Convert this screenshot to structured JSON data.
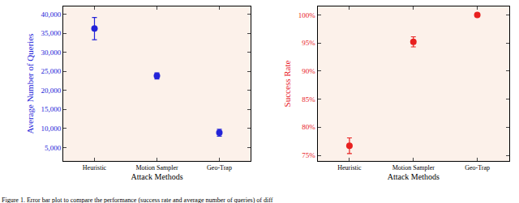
{
  "chart_data": [
    {
      "type": "scatter",
      "x_label": "Attack Methods",
      "y_label": "Average Number of Queries",
      "categories": [
        "Heuristic",
        "Motion Sampler",
        "Geo-Trap"
      ],
      "values": [
        36200,
        23800,
        8900
      ],
      "errors": [
        2900,
        800,
        900
      ],
      "color": "#2323d8",
      "marker": "circle",
      "ylim": [
        1500,
        42000
      ],
      "yticks": [
        {
          "value": 5000,
          "label": "5,000"
        },
        {
          "value": 10000,
          "label": "10,000"
        },
        {
          "value": 15000,
          "label": "15,000"
        },
        {
          "value": 20000,
          "label": "20,000"
        },
        {
          "value": 25000,
          "label": "25,000"
        },
        {
          "value": 30000,
          "label": "30,000"
        },
        {
          "value": 35000,
          "label": "35,000"
        },
        {
          "value": 40000,
          "label": "40,000"
        }
      ],
      "grid": false
    },
    {
      "type": "scatter",
      "x_label": "Attack Methods",
      "y_label": "Success Rate",
      "categories": [
        "Heuristic",
        "Motion Sampler",
        "Geo-Trap"
      ],
      "values": [
        76.7,
        95.2,
        100
      ],
      "errors": [
        1.4,
        0.9,
        0
      ],
      "color": "#e8201f",
      "marker": "circle",
      "ylim": [
        74,
        101.5
      ],
      "yticks": [
        {
          "value": 75,
          "label": "75%"
        },
        {
          "value": 80,
          "label": "80%"
        },
        {
          "value": 85,
          "label": "85%"
        },
        {
          "value": 90,
          "label": "90%"
        },
        {
          "value": 95,
          "label": "95%"
        },
        {
          "value": 100,
          "label": "100%"
        }
      ],
      "grid": false
    }
  ],
  "caption": "Figure 1. Error bar plot to compare the performance (success rate and average number of queries) of diff"
}
